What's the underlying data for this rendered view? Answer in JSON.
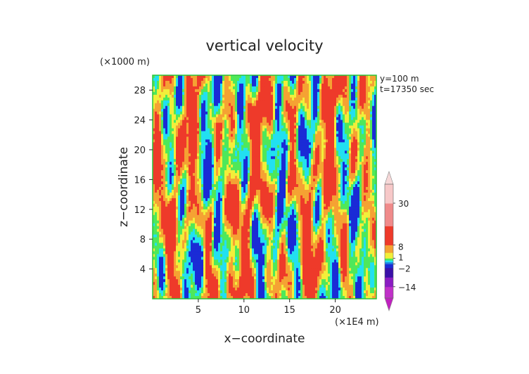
{
  "chart_data": {
    "type": "heatmap",
    "title": "vertical velocity",
    "xlabel": "x−coordinate",
    "ylabel": "z−coordinate",
    "x_unit": "(×1E4 m)",
    "y_unit": "(×1000 m)",
    "annotations": [
      "y=100 m",
      "t=17350 sec"
    ],
    "xlim": [
      0,
      24.5
    ],
    "ylim": [
      0,
      30
    ],
    "x_ticks": [
      5,
      10,
      15,
      20
    ],
    "y_ticks": [
      4,
      8,
      12,
      16,
      20,
      24,
      28
    ],
    "x_tick_labels": [
      "5",
      "10",
      "15",
      "20"
    ],
    "y_tick_labels": [
      "4",
      "8",
      "12",
      "16",
      "20",
      "24",
      "28"
    ],
    "colorbar": {
      "tick_labels": [
        "30",
        "8",
        "1",
        "−2",
        "−14"
      ],
      "tick_values": [
        30,
        8,
        1,
        -2,
        -14
      ],
      "range": [
        -20,
        40
      ]
    },
    "colors": {
      "deep_blue": "#1a2bd6",
      "cyan": "#22e0f0",
      "green": "#4ee85a",
      "yellow": "#f2ee3a",
      "orange": "#f5a233",
      "red": "#ee3a2a",
      "purple": "#8a1cc2",
      "frame_green": "#28c43a"
    }
  }
}
